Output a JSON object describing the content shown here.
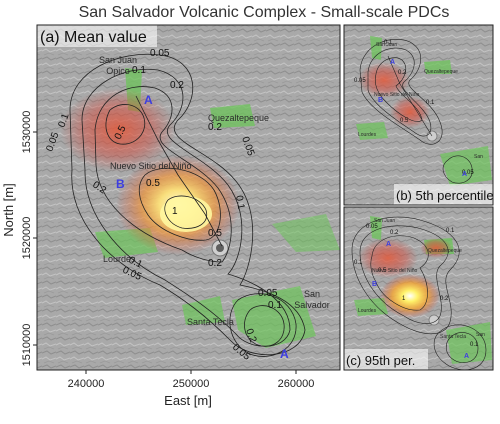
{
  "title": "San Salvador Volcanic Complex - Small-scale PDCs",
  "axes": {
    "xlabel": "East [m]",
    "ylabel": "North [m]",
    "xticks": [
      "240000",
      "250000",
      "260000"
    ],
    "yticks": [
      "1530000",
      "1520000",
      "1510000"
    ]
  },
  "panels": {
    "main": {
      "label": "(a) Mean value"
    },
    "top": {
      "label": "(b) 5th percentile"
    },
    "bottom": {
      "label": "(c) 95th per."
    }
  },
  "places": {
    "san_juan_opico": [
      "San Juan",
      "Opico"
    ],
    "quezaltepeque": "Quezaltepeque",
    "nuevo_sitio": "Nuevo Sitio del Niño",
    "lourdes": "Lourdes",
    "santa_tecla": "Santa Tecla",
    "san_salvador": [
      "San",
      "Salvador"
    ]
  },
  "vents": {
    "a": "A",
    "b": "B"
  },
  "contour_labels": {
    "c005": "0.05",
    "c01": "0.1",
    "c02": "0.2",
    "c05": "0.5",
    "c1": "1"
  },
  "colors": {
    "hot": "#fff7a0",
    "mid": "#f2a33a",
    "low": "#d9483a",
    "urban": "#6cc45a",
    "vent": "#3d3de0"
  }
}
